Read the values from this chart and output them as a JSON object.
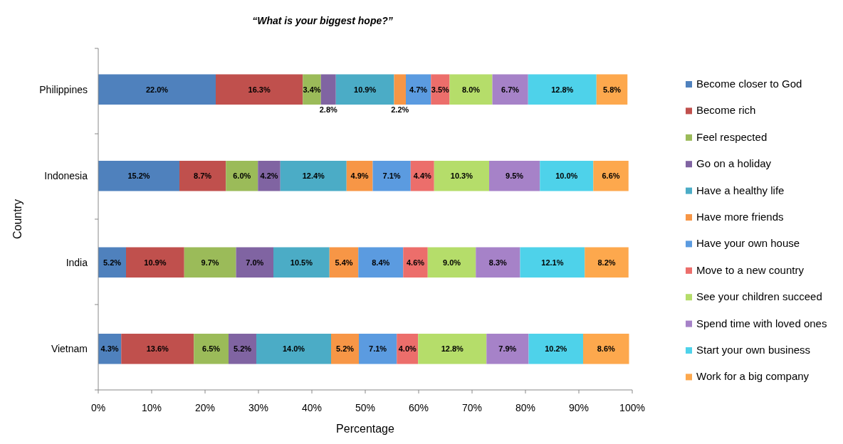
{
  "chart_data": {
    "type": "bar",
    "orientation": "horizontal",
    "stacked": true,
    "title": "“What is your biggest hope?”",
    "xlabel": "Percentage",
    "ylabel": "Country",
    "legend": "right",
    "grid": false,
    "categories": [
      "Philippines",
      "Indonesia",
      "India",
      "Vietnam"
    ],
    "xlim": [
      0,
      100
    ],
    "xticks": [
      {
        "value": 0,
        "label": "0%"
      },
      {
        "value": 10,
        "label": "10%"
      },
      {
        "value": 20,
        "label": "20%"
      },
      {
        "value": 30,
        "label": "30%"
      },
      {
        "value": 40,
        "label": "40%"
      },
      {
        "value": 50,
        "label": "50%"
      },
      {
        "value": 60,
        "label": "60%"
      },
      {
        "value": 70,
        "label": "70%"
      },
      {
        "value": 80,
        "label": "80%"
      },
      {
        "value": 90,
        "label": "90%"
      },
      {
        "value": 100,
        "label": "100%"
      }
    ],
    "series": [
      {
        "name": "Become closer to God",
        "color": "#4f81bd",
        "values": [
          22.0,
          15.2,
          5.2,
          4.3
        ],
        "value_labels": [
          "22.0%",
          "15.2%",
          "5.2%",
          "4.3%"
        ]
      },
      {
        "name": "Become rich",
        "color": "#c0504d",
        "values": [
          16.3,
          8.7,
          10.9,
          13.6
        ],
        "value_labels": [
          "16.3%",
          "8.7%",
          "10.9%",
          "13.6%"
        ]
      },
      {
        "name": "Feel respected",
        "color": "#9bbb59",
        "values": [
          3.4,
          6.0,
          9.7,
          6.5
        ],
        "value_labels": [
          "3.4%",
          "6.0%",
          "9.7%",
          "6.5%"
        ]
      },
      {
        "name": "Go on a holiday",
        "color": "#8064a2",
        "values": [
          2.8,
          4.2,
          7.0,
          5.2
        ],
        "value_labels": [
          "2.8%",
          "4.2%",
          "7.0%",
          "5.2%"
        ]
      },
      {
        "name": "Have a healthy life",
        "color": "#4bacc6",
        "values": [
          10.9,
          12.4,
          10.5,
          14.0
        ],
        "value_labels": [
          "10.9%",
          "12.4%",
          "10.5%",
          "14.0%"
        ]
      },
      {
        "name": "Have more friends",
        "color": "#f79646",
        "values": [
          2.2,
          4.9,
          5.4,
          5.2
        ],
        "value_labels": [
          "2.2%",
          "4.9%",
          "5.4%",
          "5.2%"
        ]
      },
      {
        "name": "Have your own house",
        "color": "#5b9be0",
        "values": [
          4.7,
          7.1,
          8.4,
          7.1
        ],
        "value_labels": [
          "4.7%",
          "7.1%",
          "8.4%",
          "7.1%"
        ]
      },
      {
        "name": "Move to a new country",
        "color": "#ec6e6b",
        "values": [
          3.5,
          4.4,
          4.6,
          4.0
        ],
        "value_labels": [
          "3.5%",
          "4.4%",
          "4.6%",
          "4.0%"
        ]
      },
      {
        "name": "See your children succeed",
        "color": "#b5dd6a",
        "values": [
          8.0,
          10.3,
          9.0,
          12.8
        ],
        "value_labels": [
          "8.0%",
          "10.3%",
          "9.0%",
          "12.8%"
        ]
      },
      {
        "name": "Spend time with loved ones",
        "color": "#a682c8",
        "values": [
          6.7,
          9.5,
          8.3,
          7.9
        ],
        "value_labels": [
          "6.7%",
          "9.5%",
          "8.3%",
          "7.9%"
        ]
      },
      {
        "name": "Start your own business",
        "color": "#4ed2ea",
        "values": [
          12.8,
          10.0,
          12.1,
          10.2
        ],
        "value_labels": [
          "12.8%",
          "10.0%",
          "12.1%",
          "10.2%"
        ]
      },
      {
        "name": "Work for a big company",
        "color": "#fda84d",
        "values": [
          5.8,
          6.6,
          8.2,
          8.6
        ],
        "value_labels": [
          "5.8%",
          "6.6%",
          "8.2%",
          "8.6%"
        ]
      }
    ]
  }
}
